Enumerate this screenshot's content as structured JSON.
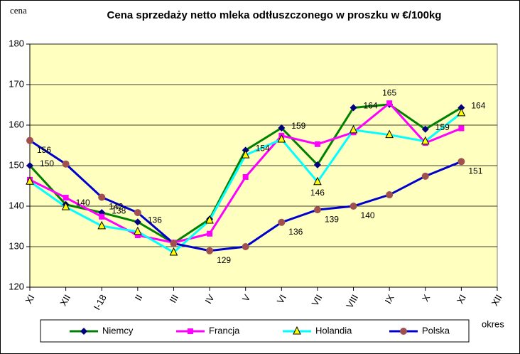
{
  "chart_data": {
    "type": "line",
    "title": "Cena sprzedaży netto mleka odtłuszczonego w proszku w €/100kg",
    "y_label": "cena",
    "x_label": "okres",
    "categories": [
      "XI",
      "XII",
      "I-18",
      "II",
      "III",
      "IV",
      "V",
      "VI",
      "VII",
      "VIII",
      "IX",
      "X",
      "XI",
      "XII"
    ],
    "ylim": [
      120,
      180
    ],
    "yticks": [
      120,
      130,
      140,
      150,
      160,
      170,
      180
    ],
    "grid": true,
    "legend": "bottom",
    "series": [
      {
        "name": "Niemcy",
        "color": "#008000",
        "marker": "diamond",
        "marker_color": "#000080",
        "values": [
          150,
          140.4,
          138.4,
          136.1,
          130.9,
          136.8,
          153.8,
          159.3,
          150.2,
          164.3,
          165.1,
          159,
          164.3,
          null
        ],
        "value_labels": [
          "150",
          "140",
          "138",
          "136",
          null,
          null,
          "154",
          "159",
          null,
          "164",
          null,
          "159",
          "164",
          null
        ]
      },
      {
        "name": "Francja",
        "color": "#ff00ff",
        "marker": "square",
        "marker_color": "#ff00ff",
        "values": [
          146.5,
          142.1,
          137.4,
          132.8,
          131,
          133.2,
          147.2,
          157.4,
          155.3,
          158.2,
          165.4,
          155.6,
          159.2,
          null
        ],
        "value_labels": [
          null,
          null,
          null,
          null,
          null,
          null,
          null,
          null,
          null,
          null,
          "165",
          null,
          null,
          null
        ]
      },
      {
        "name": "Holandia",
        "color": "#00ffff",
        "marker": "triangle",
        "marker_color": "#ffff00",
        "values": [
          146.1,
          139.8,
          135.1,
          133.7,
          128.6,
          136.5,
          152.6,
          156.5,
          146,
          158.8,
          157.6,
          156,
          163,
          null
        ],
        "value_labels": [
          null,
          null,
          null,
          null,
          null,
          null,
          null,
          null,
          "146",
          null,
          null,
          null,
          null,
          null
        ]
      },
      {
        "name": "Polska",
        "color": "#0000cc",
        "marker": "circle",
        "marker_color": "#a0504f",
        "values": [
          156.2,
          150.4,
          142.2,
          138.4,
          130.8,
          129,
          130,
          136,
          139.1,
          140,
          142.8,
          147.4,
          151,
          null
        ],
        "value_labels": [
          "156",
          null,
          "142",
          null,
          null,
          "129",
          null,
          "136",
          "139",
          "140",
          null,
          null,
          "151",
          null
        ]
      }
    ]
  }
}
